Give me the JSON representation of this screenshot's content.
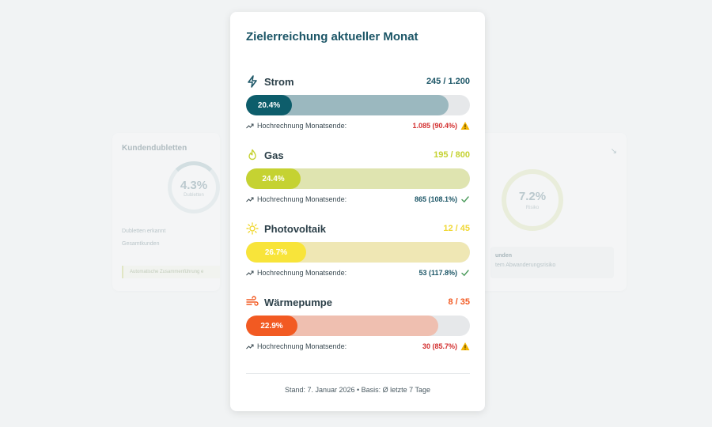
{
  "background": {
    "left_card": {
      "title": "Kundendubletten",
      "percent": "4.3%",
      "percent_sub": "Dubletten",
      "line1": "Dubletten erkannt",
      "line2": "Gesamtkunden",
      "note": "Automatische Zusammenführung e"
    },
    "right_card": {
      "percent": "7.2%",
      "percent_sub": "Risiko",
      "box_title": "unden",
      "box_sub": "tem Abwanderungsrisiko"
    }
  },
  "card": {
    "title": "Zielerreichung aktueller Monat",
    "projection_label": "Hochrechnung Monatsende:",
    "footer": "Stand: 7. Januar 2026 • Basis: Ø letzte 7 Tage"
  },
  "metrics": [
    {
      "label": "Strom",
      "count": "245 / 1.200",
      "percent_label": "20.4%",
      "percent": 20.4,
      "projection": "1.085 (90.4%)",
      "projection_percent": 90.4,
      "status": "warning",
      "icon": "lightning-icon",
      "color": "#0d5d6b",
      "track_color": "#9bb8bf",
      "count_color": "#1b5566",
      "projection_color": "#d32f2f"
    },
    {
      "label": "Gas",
      "count": "195 / 800",
      "percent_label": "24.4%",
      "percent": 24.4,
      "projection": "865 (108.1%)",
      "projection_percent": 100,
      "status": "ok",
      "icon": "flame-icon",
      "color": "#c5d232",
      "track_color": "#dfe4b0",
      "count_color": "#c5d232",
      "projection_color": "#1b5566"
    },
    {
      "label": "Photovoltaik",
      "count": "12 / 45",
      "percent_label": "26.7%",
      "percent": 26.7,
      "projection": "53 (117.8%)",
      "projection_percent": 100,
      "status": "ok",
      "icon": "sun-icon",
      "color": "#f8e43a",
      "track_color": "#efe7b4",
      "count_color": "#f0d836",
      "projection_color": "#1b5566"
    },
    {
      "label": "Wärmepumpe",
      "count": "8 / 35",
      "percent_label": "22.9%",
      "percent": 22.9,
      "projection": "30 (85.7%)",
      "projection_percent": 85.7,
      "status": "warning",
      "icon": "wind-icon",
      "color": "#f25a22",
      "track_color": "#efbfb0",
      "count_color": "#f25a22",
      "projection_color": "#d32f2f"
    }
  ]
}
